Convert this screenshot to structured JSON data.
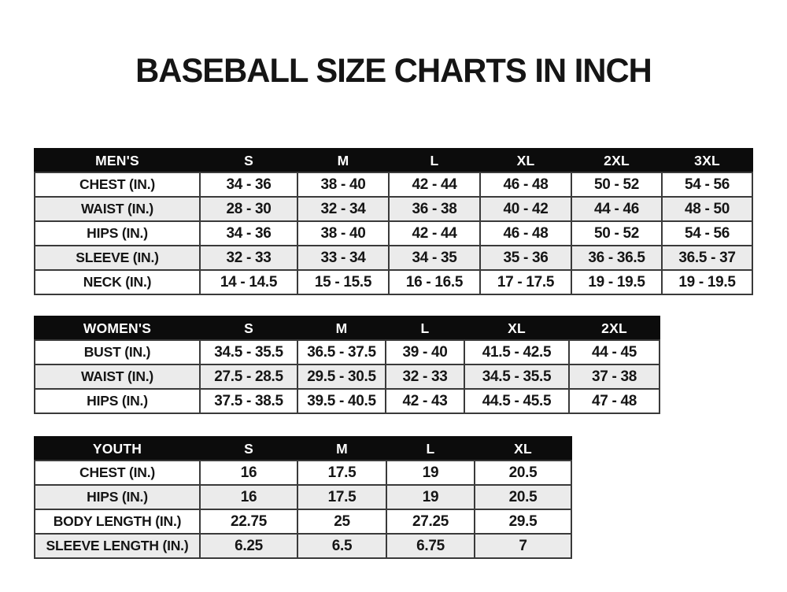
{
  "title": "BASEBALL SIZE CHARTS IN INCH",
  "colors": {
    "header_bg": "#0c0c0c",
    "header_text": "#ffffff",
    "stripe": "#ebebeb",
    "grid": "#3a3a3a",
    "text": "#151515",
    "background": "#ffffff"
  },
  "chart_data": [
    {
      "type": "table",
      "title": "MEN'S",
      "columns": [
        "MEN'S",
        "S",
        "M",
        "L",
        "XL",
        "2XL",
        "3XL"
      ],
      "rows": [
        [
          "CHEST (IN.)",
          "34 - 36",
          "38 - 40",
          "42 - 44",
          "46 - 48",
          "50 - 52",
          "54 - 56"
        ],
        [
          "WAIST (IN.)",
          "28 - 30",
          "32 - 34",
          "36 - 38",
          "40 - 42",
          "44 - 46",
          "48 - 50"
        ],
        [
          "HIPS (IN.)",
          "34 - 36",
          "38 - 40",
          "42 - 44",
          "46 - 48",
          "50 - 52",
          "54 - 56"
        ],
        [
          "SLEEVE (IN.)",
          "32 - 33",
          "33 - 34",
          "34 - 35",
          "35 - 36",
          "36 - 36.5",
          "36.5 - 37"
        ],
        [
          "NECK (IN.)",
          "14 - 14.5",
          "15 - 15.5",
          "16 - 16.5",
          "17 - 17.5",
          "19 - 19.5",
          "19 - 19.5"
        ]
      ]
    },
    {
      "type": "table",
      "title": "WOMEN'S",
      "columns": [
        "WOMEN'S",
        "S",
        "M",
        "L",
        "XL",
        "2XL"
      ],
      "rows": [
        [
          "BUST (IN.)",
          "34.5 - 35.5",
          "36.5 - 37.5",
          "39 - 40",
          "41.5 - 42.5",
          "44 - 45"
        ],
        [
          "WAIST (IN.)",
          "27.5 - 28.5",
          "29.5 - 30.5",
          "32 - 33",
          "34.5 - 35.5",
          "37 - 38"
        ],
        [
          "HIPS (IN.)",
          "37.5 - 38.5",
          "39.5 - 40.5",
          "42 - 43",
          "44.5 - 45.5",
          "47 - 48"
        ]
      ]
    },
    {
      "type": "table",
      "title": "YOUTH",
      "columns": [
        "YOUTH",
        "S",
        "M",
        "L",
        "XL"
      ],
      "rows": [
        [
          "CHEST (IN.)",
          "16",
          "17.5",
          "19",
          "20.5"
        ],
        [
          "HIPS (IN.)",
          "16",
          "17.5",
          "19",
          "20.5"
        ],
        [
          "BODY LENGTH (IN.)",
          "22.75",
          "25",
          "27.25",
          "29.5"
        ],
        [
          "SLEEVE LENGTH (IN.)",
          "6.25",
          "6.5",
          "6.75",
          "7"
        ]
      ]
    }
  ]
}
